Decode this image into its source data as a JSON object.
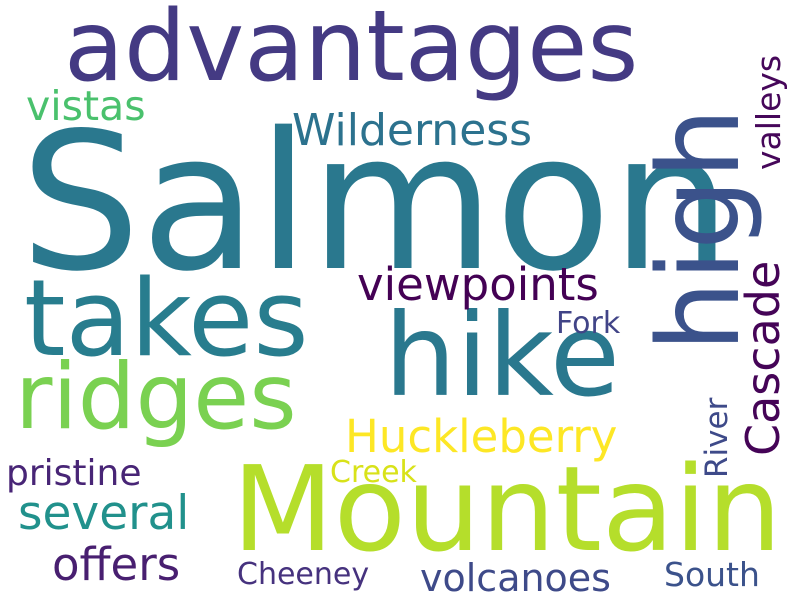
{
  "words": {
    "salmon": {
      "text": "Salmon",
      "color": "#2a788e"
    },
    "advantages": {
      "text": "advantages",
      "color": "#443a83"
    },
    "mountain": {
      "text": "Mountain",
      "color": "#b5de2b"
    },
    "hike": {
      "text": "hike",
      "color": "#2a788e"
    },
    "takes": {
      "text": "takes",
      "color": "#287d8e"
    },
    "high": {
      "text": "high",
      "color": "#3b528b"
    },
    "ridges": {
      "text": "ridges",
      "color": "#7ad151"
    },
    "wilderness": {
      "text": "Wilderness",
      "color": "#2c728e"
    },
    "vistas": {
      "text": "vistas",
      "color": "#4ac16d"
    },
    "viewpoints": {
      "text": "viewpoints",
      "color": "#440154"
    },
    "huckleberry": {
      "text": "Huckleberry",
      "color": "#fde725"
    },
    "several": {
      "text": "several",
      "color": "#21918c"
    },
    "offers": {
      "text": "offers",
      "color": "#481f70"
    },
    "pristine": {
      "text": "pristine",
      "color": "#482576"
    },
    "volcanoes": {
      "text": "volcanoes",
      "color": "#3e4a89"
    },
    "cascade": {
      "text": "Cascade",
      "color": "#450457"
    },
    "valleys": {
      "text": "valleys",
      "color": "#46075a"
    },
    "river": {
      "text": "River",
      "color": "#3e4a89"
    },
    "fork": {
      "text": "Fork",
      "color": "#414487"
    },
    "creek": {
      "text": "Creek",
      "color": "#d8e219"
    },
    "cheeney": {
      "text": "Cheeney",
      "color": "#46327e"
    },
    "south": {
      "text": "South",
      "color": "#3b528b"
    }
  }
}
